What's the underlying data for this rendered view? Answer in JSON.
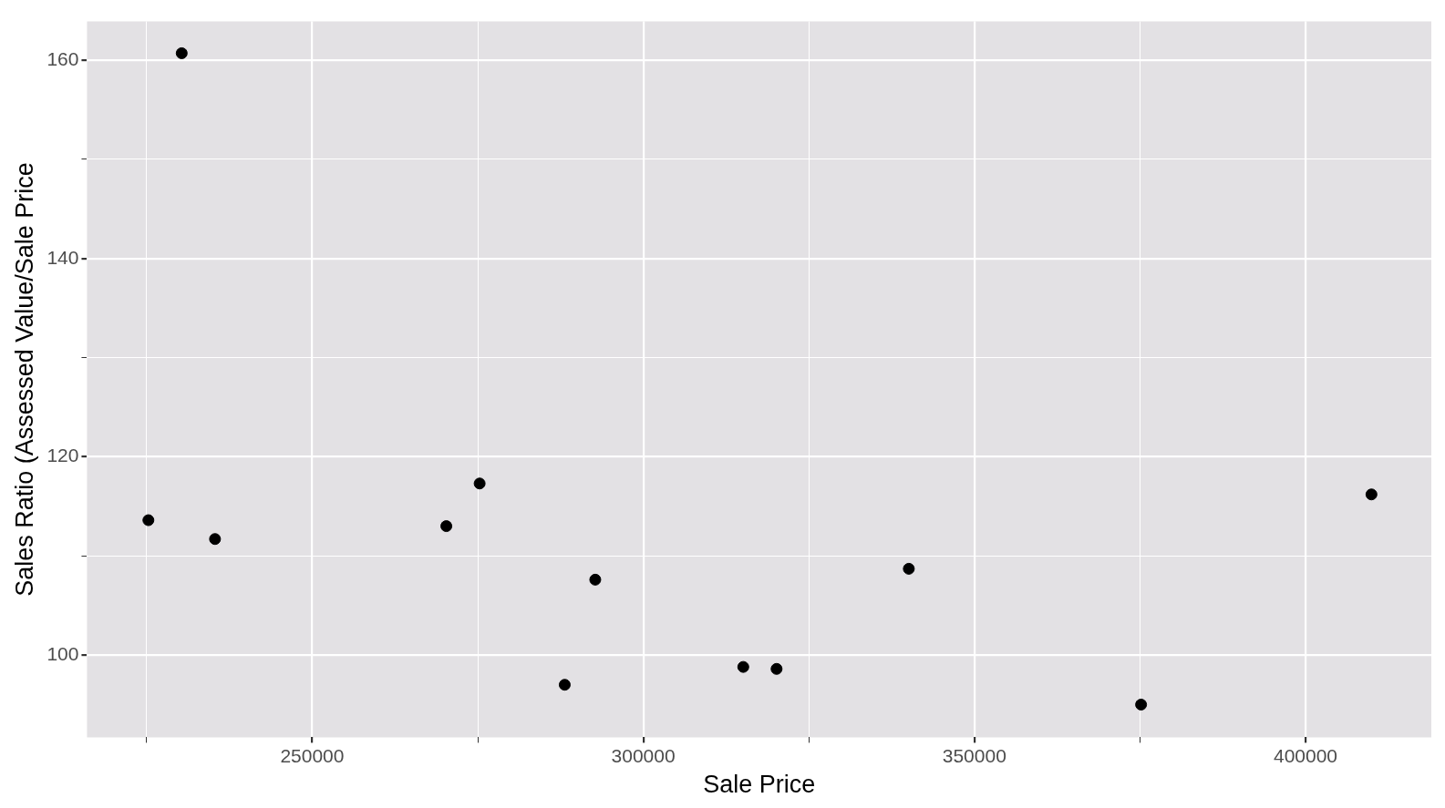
{
  "chart_data": {
    "type": "scatter",
    "xlabel": "Sale Price",
    "ylabel": "Sales Ratio (Assessed Value/Sale Price",
    "x": [
      230300,
      225270,
      235330,
      270260,
      275290,
      292750,
      288140,
      315100,
      320130,
      340100,
      375170,
      409960
    ],
    "values": [
      160.7,
      113.6,
      111.7,
      113.0,
      117.3,
      107.6,
      97.0,
      98.8,
      98.6,
      108.7,
      95.0,
      116.2
    ],
    "color": "#000000",
    "marker": "circle",
    "xlim": [
      216000,
      419000
    ],
    "xticks": [
      {
        "value": 225000,
        "label": null
      },
      250000,
      {
        "value": 275000,
        "label": null
      },
      300000,
      {
        "value": 325000,
        "label": null
      },
      350000,
      {
        "value": 375000,
        "label": null
      },
      400000
    ],
    "ylim": [
      91.7,
      163.9
    ],
    "yticks": [
      100,
      {
        "value": 110,
        "label": null
      },
      120,
      {
        "value": 130,
        "label": null
      },
      140,
      {
        "value": 150,
        "label": null
      },
      160
    ],
    "grid": true
  }
}
